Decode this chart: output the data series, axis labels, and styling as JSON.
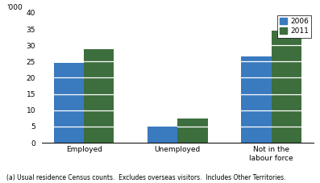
{
  "categories": [
    "Employed",
    "Unemployed",
    "Not in the\nlabour force"
  ],
  "values_2006": [
    24.5,
    5.0,
    26.5
  ],
  "values_2011": [
    28.7,
    7.5,
    34.5
  ],
  "color_2006": "#3a7abf",
  "color_2011": "#3d6e3d",
  "legend_labels": [
    "2006",
    "2011"
  ],
  "ylabel": "'000",
  "ylim": [
    0,
    40
  ],
  "yticks": [
    0,
    5,
    10,
    15,
    20,
    25,
    30,
    35,
    40
  ],
  "bar_width": 0.32,
  "footnote": "(a) Usual residence Census counts.  Excludes overseas visitors.  Includes Other Territories.",
  "tick_fontsize": 6.5,
  "legend_fontsize": 6.5,
  "footnote_fontsize": 5.5
}
